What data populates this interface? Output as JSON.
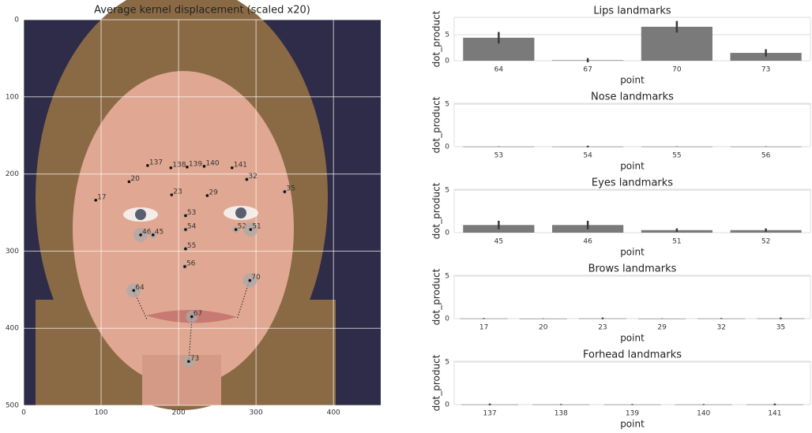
{
  "chart_data": [
    {
      "type": "scatter",
      "title": "Average kernel displacement (scaled x20)",
      "labels": [
        "137",
        "138",
        "139",
        "140",
        "141",
        "32",
        "35",
        "20",
        "17",
        "23",
        "29",
        "53",
        "54",
        "46",
        "45",
        "52",
        "51",
        "55",
        "56",
        "64",
        "70",
        "67",
        "73"
      ],
      "x": [
        160,
        190,
        211,
        233,
        269,
        288,
        337,
        136,
        93,
        191,
        237,
        209,
        209,
        151,
        167,
        274,
        293,
        209,
        208,
        142,
        292,
        217,
        213
      ],
      "y": [
        189,
        192,
        191,
        190,
        192,
        207,
        223,
        210,
        234,
        227,
        228,
        254,
        272,
        279,
        279,
        272,
        272,
        297,
        320,
        351,
        338,
        385,
        443
      ],
      "sizes": [
        1,
        1,
        1,
        1,
        1,
        2,
        2,
        1,
        1,
        1,
        1,
        2,
        2,
        6,
        3,
        3,
        6,
        2,
        2,
        6,
        6,
        5,
        5
      ],
      "xlim": [
        0,
        461
      ],
      "ylim": [
        500,
        0
      ],
      "xticks": [
        0,
        100,
        200,
        300,
        400
      ],
      "yticks": [
        0,
        100,
        200,
        300,
        400,
        500
      ],
      "grid": true
    },
    {
      "type": "bar",
      "title": "Lips landmarks",
      "xlabel": "point",
      "ylabel": "dot_product",
      "categories": [
        "64",
        "67",
        "70",
        "73"
      ],
      "values": [
        4.4,
        0.1,
        6.5,
        1.5
      ],
      "errors": [
        1.1,
        0.4,
        1.1,
        0.7
      ],
      "color": "#7a7a7a",
      "ylim": [
        0,
        8.3
      ],
      "yticks": [
        0,
        5
      ],
      "grid": true
    },
    {
      "type": "bar",
      "title": "Nose landmarks",
      "xlabel": "point",
      "ylabel": "dot_product",
      "categories": [
        "53",
        "54",
        "55",
        "56"
      ],
      "values": [
        0.02,
        0.02,
        0.02,
        0.02
      ],
      "errors": [
        0.02,
        0.1,
        0.02,
        0.02
      ],
      "color": "#7a7a7a",
      "ylim": [
        0,
        5.1
      ],
      "yticks": [
        0,
        5
      ],
      "grid": true
    },
    {
      "type": "bar",
      "title": "Eyes landmarks",
      "xlabel": "point",
      "ylabel": "dot_product",
      "categories": [
        "45",
        "46",
        "51",
        "52"
      ],
      "values": [
        0.9,
        0.9,
        0.3,
        0.3
      ],
      "errors": [
        0.5,
        0.5,
        0.2,
        0.2
      ],
      "color": "#7a7a7a",
      "ylim": [
        0,
        5.1
      ],
      "yticks": [
        0,
        5
      ],
      "grid": true
    },
    {
      "type": "bar",
      "title": "Brows landmarks",
      "xlabel": "point",
      "ylabel": "dot_product",
      "categories": [
        "17",
        "20",
        "23",
        "29",
        "32",
        "35"
      ],
      "values": [
        0.02,
        0.01,
        0.03,
        0.01,
        0.02,
        0.03
      ],
      "errors": [
        0.05,
        0.02,
        0.1,
        0.02,
        0.05,
        0.1
      ],
      "color": "#7a7a7a",
      "ylim": [
        0,
        5.1
      ],
      "yticks": [
        0,
        5
      ],
      "grid": true
    },
    {
      "type": "bar",
      "title": "Forhead landmarks",
      "xlabel": "point",
      "ylabel": "dot_product",
      "categories": [
        "137",
        "138",
        "139",
        "140",
        "141"
      ],
      "values": [
        0.02,
        0.02,
        0.02,
        0.02,
        0.02
      ],
      "errors": [
        0.1,
        0.05,
        0.05,
        0.05,
        0.1
      ],
      "color": "#7a7a7a",
      "ylim": [
        0,
        5.1
      ],
      "yticks": [
        0,
        5
      ],
      "grid": true
    }
  ]
}
